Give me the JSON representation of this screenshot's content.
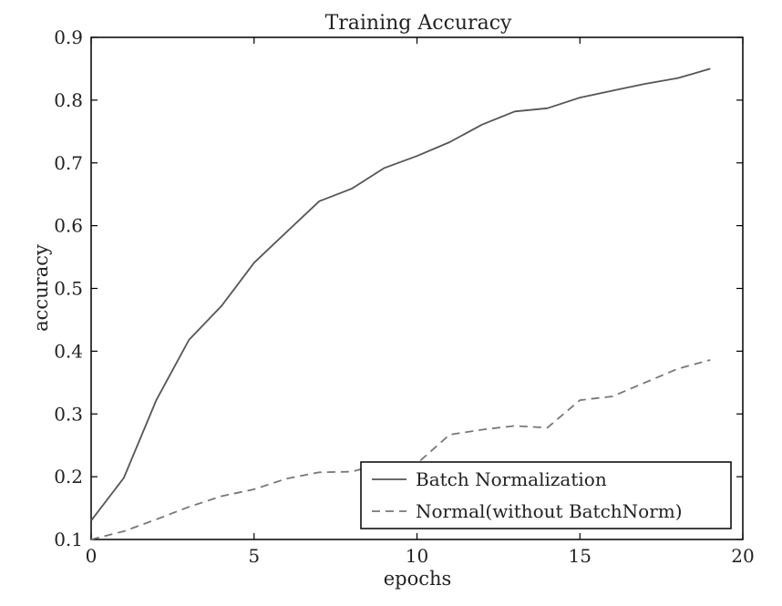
{
  "chart_data": {
    "type": "line",
    "title": "Training Accuracy",
    "xlabel": "epochs",
    "ylabel": "accuracy",
    "xlim": [
      0,
      20
    ],
    "ylim": [
      0.1,
      0.9
    ],
    "xticks": [
      0,
      5,
      10,
      15,
      20
    ],
    "yticks": [
      0.1,
      0.2,
      0.3,
      0.4,
      0.5,
      0.6,
      0.7,
      0.8,
      0.9
    ],
    "xtick_labels": [
      "0",
      "5",
      "10",
      "15",
      "20"
    ],
    "ytick_labels": [
      "0.1",
      "0.2",
      "0.3",
      "0.4",
      "0.5",
      "0.6",
      "0.7",
      "0.8",
      "0.9"
    ],
    "grid": false,
    "legend_position": "bottom-right",
    "series": [
      {
        "name": "Batch Normalization",
        "style": "solid",
        "color": "#555555",
        "x": [
          0,
          1,
          2,
          3,
          4,
          5,
          6,
          7,
          8,
          9,
          10,
          11,
          12,
          13,
          14,
          15,
          16,
          17,
          18,
          19
        ],
        "y": [
          0.13,
          0.198,
          0.322,
          0.418,
          0.472,
          0.541,
          0.59,
          0.639,
          0.659,
          0.692,
          0.711,
          0.733,
          0.761,
          0.782,
          0.787,
          0.804,
          0.815,
          0.826,
          0.835,
          0.85
        ]
      },
      {
        "name": "Normal(without BatchNorm)",
        "style": "dashed",
        "color": "#777777",
        "x": [
          0,
          1,
          2,
          3,
          4,
          5,
          6,
          7,
          8,
          9,
          10,
          11,
          12,
          13,
          14,
          15,
          16,
          17,
          18,
          19
        ],
        "y": [
          0.1,
          0.113,
          0.132,
          0.152,
          0.169,
          0.18,
          0.197,
          0.207,
          0.208,
          0.222,
          0.221,
          0.267,
          0.275,
          0.281,
          0.278,
          0.322,
          0.328,
          0.35,
          0.372,
          0.386
        ]
      }
    ]
  }
}
